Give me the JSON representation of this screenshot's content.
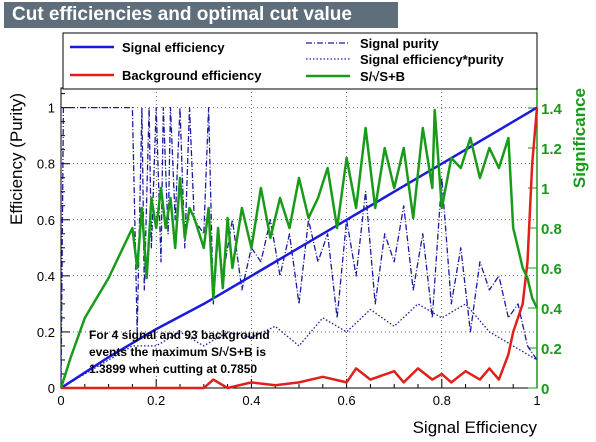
{
  "chart_data": {
    "type": "line",
    "title": "Cut efficiencies and optimal cut value",
    "xlabel": "Signal Efficiency",
    "ylabel": "Efficiency (Purity)",
    "y2label": "Significance",
    "xlim": [
      0,
      1
    ],
    "ylim": [
      0,
      1.07
    ],
    "y2lim": [
      0,
      1.5
    ],
    "xticks": [
      "0",
      "0.2",
      "0.4",
      "0.6",
      "0.8",
      "1"
    ],
    "yticks": [
      "0",
      "0.2",
      "0.4",
      "0.6",
      "0.8",
      "1"
    ],
    "y2ticks": [
      "0",
      "0.2",
      "0.4",
      "0.6",
      "0.8",
      "1",
      "1.2",
      "1.4"
    ],
    "grid": true,
    "legend_position": "top",
    "annotation": [
      "For 4 signal and 93 background",
      "events the maximum S/√S+B is",
      "1.3899 when cutting at 0.7850"
    ],
    "colors": {
      "signal_efficiency": "#1a1adc",
      "background_efficiency": "#e0201a",
      "signal_purity": "#1a1aa0",
      "significance": "#1a9a1a",
      "y2axis": "#1a9a1a"
    },
    "series": [
      {
        "name": "Signal efficiency",
        "style": "solid",
        "x": [
          0,
          0.1,
          0.2,
          0.3,
          0.4,
          0.5,
          0.6,
          0.7,
          0.8,
          0.9,
          1.0
        ],
        "y": [
          0,
          0.11,
          0.21,
          0.3,
          0.4,
          0.5,
          0.6,
          0.7,
          0.8,
          0.9,
          1.0
        ]
      },
      {
        "name": "Background efficiency",
        "style": "solid",
        "x": [
          0,
          0.05,
          0.1,
          0.15,
          0.2,
          0.25,
          0.3,
          0.32,
          0.35,
          0.4,
          0.45,
          0.5,
          0.55,
          0.6,
          0.62,
          0.65,
          0.7,
          0.72,
          0.75,
          0.78,
          0.8,
          0.82,
          0.85,
          0.88,
          0.9,
          0.92,
          0.94,
          0.95,
          0.96,
          0.97,
          0.98,
          0.99,
          1.0
        ],
        "y": [
          0,
          0,
          0,
          0,
          0,
          0,
          0,
          0.03,
          0,
          0.02,
          0.01,
          0.02,
          0.04,
          0.02,
          0.07,
          0.03,
          0.06,
          0.02,
          0.07,
          0.03,
          0.05,
          0.02,
          0.06,
          0.03,
          0.07,
          0.03,
          0.12,
          0.2,
          0.25,
          0.3,
          0.45,
          0.8,
          1.0
        ]
      },
      {
        "name": "Signal purity",
        "style": "dash-dot",
        "x": [
          0,
          0.005,
          0.01,
          0.15,
          0.16,
          0.17,
          0.175,
          0.185,
          0.19,
          0.2,
          0.21,
          0.215,
          0.225,
          0.23,
          0.24,
          0.25,
          0.26,
          0.27,
          0.28,
          0.3,
          0.31,
          0.32,
          0.33,
          0.34,
          0.36,
          0.38,
          0.4,
          0.42,
          0.44,
          0.46,
          0.48,
          0.5,
          0.52,
          0.54,
          0.56,
          0.58,
          0.6,
          0.62,
          0.64,
          0.66,
          0.68,
          0.7,
          0.72,
          0.74,
          0.76,
          0.78,
          0.8,
          0.82,
          0.84,
          0.86,
          0.88,
          0.9,
          0.92,
          0.94,
          0.96,
          0.98,
          1.0
        ],
        "y": [
          0,
          1.0,
          1.0,
          1.0,
          0.2,
          1.0,
          0.35,
          1.0,
          0.5,
          1.0,
          0.45,
          1.0,
          0.55,
          1.0,
          0.6,
          1.0,
          0.5,
          1.0,
          0.6,
          0.55,
          1.0,
          0.3,
          0.55,
          0.4,
          0.6,
          0.35,
          0.5,
          0.45,
          0.6,
          0.4,
          0.55,
          0.3,
          0.6,
          0.45,
          0.55,
          0.25,
          0.6,
          0.4,
          0.7,
          0.3,
          0.55,
          0.45,
          0.65,
          0.35,
          0.55,
          0.25,
          0.75,
          0.3,
          0.5,
          0.2,
          0.45,
          0.35,
          0.4,
          0.25,
          0.3,
          0.15,
          0.1
        ]
      },
      {
        "name": "Signal efficiency*purity",
        "style": "dotted",
        "x": [
          0,
          0.01,
          0.05,
          0.1,
          0.15,
          0.2,
          0.25,
          0.3,
          0.35,
          0.4,
          0.45,
          0.5,
          0.55,
          0.6,
          0.65,
          0.7,
          0.75,
          0.8,
          0.85,
          0.9,
          0.95,
          1.0
        ],
        "y": [
          0,
          0.01,
          0.05,
          0.1,
          0.15,
          0.15,
          0.2,
          0.15,
          0.2,
          0.18,
          0.22,
          0.15,
          0.25,
          0.2,
          0.28,
          0.22,
          0.3,
          0.25,
          0.3,
          0.2,
          0.15,
          0.1
        ]
      },
      {
        "name": "S/√S+B",
        "style": "solid",
        "axis": "right",
        "x": [
          0,
          0.02,
          0.05,
          0.1,
          0.15,
          0.16,
          0.17,
          0.18,
          0.19,
          0.2,
          0.21,
          0.22,
          0.23,
          0.24,
          0.25,
          0.26,
          0.27,
          0.28,
          0.3,
          0.31,
          0.32,
          0.33,
          0.34,
          0.35,
          0.36,
          0.38,
          0.4,
          0.42,
          0.44,
          0.46,
          0.48,
          0.5,
          0.52,
          0.54,
          0.56,
          0.58,
          0.6,
          0.62,
          0.64,
          0.66,
          0.68,
          0.7,
          0.72,
          0.74,
          0.76,
          0.78,
          0.785,
          0.8,
          0.82,
          0.84,
          0.86,
          0.88,
          0.9,
          0.92,
          0.94,
          0.95,
          0.96,
          0.97,
          0.98,
          0.99,
          1.0
        ],
        "y": [
          0,
          0.15,
          0.35,
          0.55,
          0.8,
          0.6,
          0.9,
          0.55,
          0.95,
          0.8,
          1.0,
          0.8,
          0.95,
          0.7,
          1.05,
          0.75,
          0.9,
          0.85,
          0.7,
          0.9,
          0.45,
          0.8,
          0.5,
          0.85,
          0.6,
          0.9,
          0.7,
          1.0,
          0.75,
          0.95,
          0.8,
          1.05,
          0.85,
          0.95,
          1.1,
          0.8,
          1.15,
          0.9,
          1.3,
          0.9,
          1.2,
          1.0,
          1.2,
          0.85,
          1.3,
          1.0,
          1.39,
          0.9,
          1.15,
          1.1,
          1.25,
          1.05,
          1.2,
          1.1,
          1.25,
          0.8,
          0.7,
          0.6,
          0.55,
          0.45,
          0.4
        ]
      }
    ]
  }
}
